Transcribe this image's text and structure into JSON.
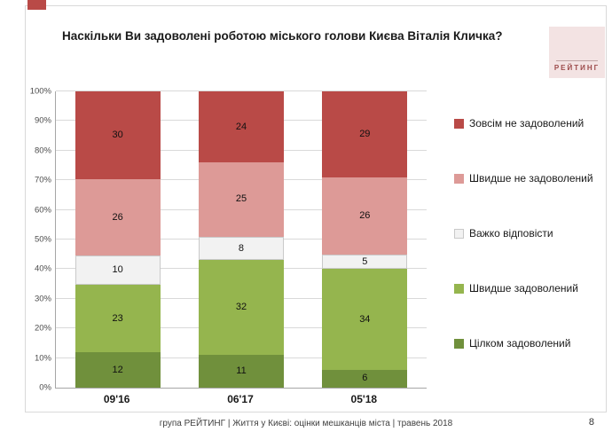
{
  "page": {
    "title": "Наскільки Ви задоволені роботою міського голови Києва Віталія Кличка?",
    "logo_text": "РЕЙТИНГ",
    "footer": "група РЕЙТИНГ  |  Життя у Києві: оцінки мешканців міста  |  травень 2018",
    "page_number": "8"
  },
  "chart_data": {
    "type": "bar",
    "stacked": true,
    "title": "Наскільки Ви задоволені роботою міського голови Києва Віталія Кличка?",
    "categories": [
      "09'16",
      "06'17",
      "05'18"
    ],
    "series": [
      {
        "name": "Цілком задоволений",
        "color": "#70903c",
        "values": [
          12,
          11,
          6
        ]
      },
      {
        "name": "Швидше задоволений",
        "color": "#95b54e",
        "values": [
          23,
          32,
          34
        ]
      },
      {
        "name": "Важко відповісти",
        "color": "#f2f2f2",
        "border": "#c9c9c9",
        "values": [
          10,
          8,
          5
        ]
      },
      {
        "name": "Швидше не задоволений",
        "color": "#dd9a97",
        "values": [
          26,
          25,
          26
        ]
      },
      {
        "name": "Зовсім не задоволений",
        "color": "#b94a47",
        "values": [
          30,
          24,
          29
        ]
      }
    ],
    "ylim": [
      0,
      100
    ],
    "yticks": [
      "0%",
      "10%",
      "20%",
      "30%",
      "40%",
      "50%",
      "60%",
      "70%",
      "80%",
      "90%",
      "100%"
    ],
    "grid": true,
    "legend_position": "right",
    "legend_order_note": "legend shown top-to-bottom as reverse of stacking order"
  }
}
